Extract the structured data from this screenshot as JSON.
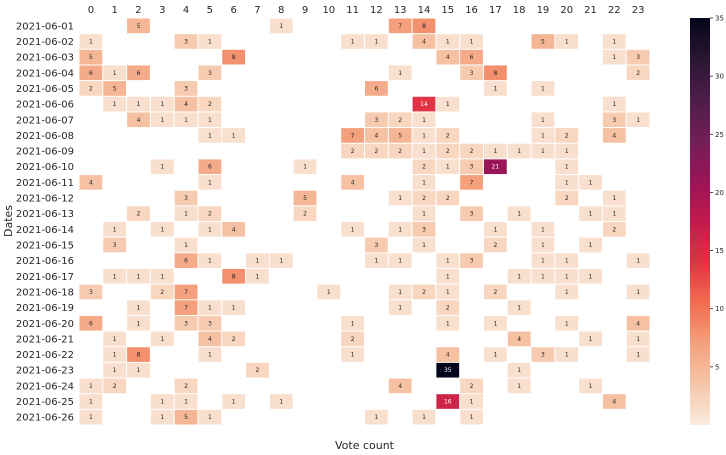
{
  "chart_data": {
    "type": "heatmap",
    "title": "",
    "xlabel": "Vote count",
    "ylabel": "Dates",
    "x_categories": [
      "0",
      "1",
      "2",
      "3",
      "4",
      "5",
      "6",
      "7",
      "8",
      "9",
      "10",
      "11",
      "12",
      "13",
      "14",
      "15",
      "16",
      "17",
      "18",
      "19",
      "20",
      "21",
      "22",
      "23"
    ],
    "y_categories": [
      "2021-06-01",
      "2021-06-02",
      "2021-06-03",
      "2021-06-04",
      "2021-06-05",
      "2021-06-06",
      "2021-06-07",
      "2021-06-08",
      "2021-06-09",
      "2021-06-10",
      "2021-06-11",
      "2021-06-12",
      "2021-06-13",
      "2021-06-14",
      "2021-06-15",
      "2021-06-16",
      "2021-06-17",
      "2021-06-18",
      "2021-06-19",
      "2021-06-20",
      "2021-06-21",
      "2021-06-22",
      "2021-06-23",
      "2021-06-24",
      "2021-06-25",
      "2021-06-26"
    ],
    "values": [
      [
        null,
        null,
        5,
        null,
        null,
        null,
        null,
        null,
        1,
        null,
        null,
        null,
        null,
        7,
        8,
        null,
        null,
        null,
        null,
        null,
        null,
        null,
        null,
        null
      ],
      [
        1,
        null,
        null,
        null,
        3,
        1,
        null,
        null,
        null,
        null,
        null,
        1,
        1,
        null,
        4,
        1,
        1,
        null,
        null,
        5,
        1,
        null,
        1,
        null
      ],
      [
        5,
        null,
        null,
        null,
        null,
        null,
        8,
        null,
        null,
        null,
        null,
        null,
        null,
        null,
        null,
        4,
        6,
        null,
        null,
        null,
        null,
        null,
        1,
        3
      ],
      [
        6,
        1,
        6,
        null,
        null,
        3,
        null,
        null,
        null,
        null,
        null,
        null,
        null,
        1,
        null,
        null,
        3,
        8,
        null,
        null,
        null,
        null,
        null,
        2
      ],
      [
        2,
        5,
        null,
        null,
        3,
        null,
        null,
        null,
        null,
        null,
        null,
        null,
        6,
        null,
        null,
        null,
        null,
        1,
        null,
        1,
        null,
        null,
        null,
        null
      ],
      [
        null,
        1,
        1,
        1,
        4,
        2,
        null,
        null,
        null,
        null,
        null,
        null,
        null,
        null,
        14,
        1,
        null,
        null,
        null,
        null,
        null,
        null,
        1,
        null
      ],
      [
        null,
        null,
        4,
        1,
        1,
        1,
        null,
        null,
        null,
        null,
        null,
        null,
        3,
        2,
        1,
        null,
        null,
        null,
        null,
        1,
        null,
        null,
        3,
        1
      ],
      [
        null,
        null,
        null,
        null,
        null,
        1,
        1,
        null,
        null,
        null,
        null,
        7,
        4,
        5,
        1,
        2,
        null,
        null,
        null,
        1,
        2,
        null,
        4,
        null
      ],
      [
        null,
        null,
        null,
        null,
        null,
        null,
        null,
        null,
        null,
        null,
        null,
        2,
        2,
        2,
        1,
        2,
        2,
        1,
        1,
        1,
        1,
        null,
        null,
        null
      ],
      [
        null,
        null,
        null,
        1,
        null,
        6,
        null,
        null,
        null,
        1,
        null,
        null,
        null,
        null,
        2,
        1,
        3,
        21,
        null,
        null,
        1,
        null,
        null,
        null
      ],
      [
        4,
        null,
        null,
        null,
        null,
        1,
        null,
        null,
        null,
        null,
        null,
        4,
        null,
        null,
        1,
        null,
        7,
        null,
        null,
        null,
        1,
        1,
        null,
        null
      ],
      [
        null,
        null,
        null,
        null,
        3,
        null,
        null,
        null,
        null,
        5,
        null,
        null,
        null,
        1,
        2,
        2,
        null,
        null,
        null,
        null,
        2,
        null,
        1,
        null
      ],
      [
        null,
        null,
        2,
        null,
        1,
        2,
        null,
        null,
        null,
        2,
        null,
        null,
        null,
        null,
        1,
        null,
        3,
        null,
        1,
        null,
        null,
        1,
        1,
        null
      ],
      [
        null,
        1,
        null,
        1,
        null,
        1,
        4,
        null,
        null,
        null,
        null,
        1,
        null,
        1,
        3,
        null,
        null,
        1,
        null,
        1,
        null,
        null,
        2,
        null
      ],
      [
        null,
        3,
        null,
        null,
        1,
        null,
        null,
        null,
        null,
        null,
        null,
        null,
        3,
        null,
        1,
        null,
        null,
        2,
        null,
        1,
        null,
        1,
        null,
        null
      ],
      [
        null,
        null,
        null,
        null,
        6,
        1,
        null,
        1,
        1,
        null,
        null,
        null,
        1,
        1,
        null,
        1,
        3,
        null,
        null,
        1,
        1,
        null,
        null,
        1
      ],
      [
        null,
        1,
        1,
        1,
        null,
        null,
        8,
        1,
        null,
        null,
        null,
        null,
        null,
        null,
        null,
        1,
        null,
        null,
        1,
        1,
        1,
        1,
        null,
        null
      ],
      [
        3,
        null,
        null,
        2,
        7,
        null,
        null,
        null,
        null,
        null,
        1,
        null,
        null,
        1,
        2,
        1,
        null,
        2,
        null,
        null,
        1,
        null,
        null,
        1
      ],
      [
        null,
        null,
        1,
        null,
        7,
        1,
        1,
        null,
        null,
        null,
        null,
        null,
        null,
        1,
        null,
        2,
        null,
        null,
        1,
        null,
        null,
        null,
        null,
        null
      ],
      [
        6,
        null,
        1,
        null,
        3,
        3,
        null,
        null,
        null,
        null,
        null,
        1,
        null,
        null,
        null,
        1,
        null,
        1,
        null,
        null,
        1,
        null,
        null,
        4
      ],
      [
        null,
        1,
        null,
        1,
        null,
        4,
        2,
        null,
        null,
        null,
        null,
        2,
        null,
        null,
        null,
        null,
        null,
        null,
        4,
        null,
        null,
        1,
        null,
        1
      ],
      [
        null,
        1,
        8,
        null,
        null,
        1,
        null,
        null,
        null,
        null,
        null,
        1,
        null,
        null,
        null,
        4,
        null,
        1,
        null,
        3,
        1,
        null,
        null,
        1
      ],
      [
        null,
        1,
        1,
        null,
        null,
        null,
        null,
        2,
        null,
        null,
        null,
        null,
        null,
        null,
        null,
        35,
        null,
        null,
        1,
        null,
        null,
        null,
        null,
        null
      ],
      [
        1,
        2,
        null,
        null,
        2,
        null,
        null,
        null,
        null,
        null,
        null,
        null,
        null,
        4,
        null,
        null,
        2,
        null,
        1,
        null,
        null,
        1,
        null,
        null
      ],
      [
        1,
        null,
        null,
        1,
        1,
        null,
        1,
        null,
        1,
        null,
        null,
        null,
        null,
        null,
        null,
        16,
        1,
        null,
        null,
        null,
        null,
        null,
        4,
        null
      ],
      [
        1,
        null,
        null,
        1,
        5,
        1,
        null,
        null,
        null,
        null,
        null,
        null,
        1,
        null,
        1,
        null,
        1,
        null,
        null,
        null,
        null,
        null,
        null,
        null
      ]
    ],
    "colorbar": {
      "min": 0,
      "max": 35,
      "ticks": [
        5,
        10,
        15,
        20,
        25,
        30,
        35
      ]
    },
    "annotations": "cell counts printed inside each non-empty cell",
    "grid": false
  }
}
